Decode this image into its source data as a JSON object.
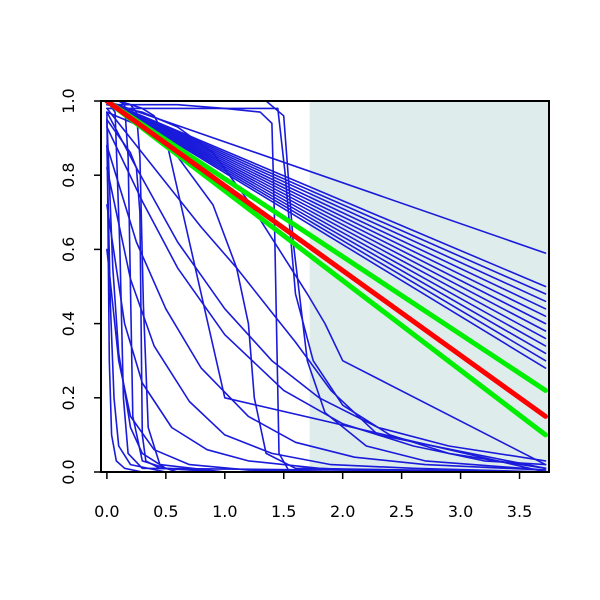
{
  "chart_data": {
    "type": "line",
    "title": "",
    "xlabel": "",
    "ylabel": "",
    "xlim": [
      -0.05,
      3.75
    ],
    "ylim": [
      0,
      1
    ],
    "x_ticks": [
      0,
      0.5,
      1,
      1.5,
      2,
      2.5,
      3,
      3.5
    ],
    "x_tick_labels": [
      "0.0",
      "0.5",
      "1.0",
      "1.5",
      "2.0",
      "2.5",
      "3.0",
      "3.5"
    ],
    "y_ticks": [
      0,
      0.2,
      0.4,
      0.6,
      0.8,
      1
    ],
    "y_tick_labels": [
      "0.0",
      "0.2",
      "0.4",
      "0.6",
      "0.8",
      "1.0"
    ],
    "grid": false,
    "legend": "none",
    "shaded_region": {
      "x": [
        1.72,
        3.75
      ],
      "y": [
        0,
        1
      ],
      "color": "#dfecec"
    },
    "colors": {
      "blue": "#1a1adb",
      "red": "#ff0000",
      "green": "#00ee00",
      "shade": "#dfecec"
    },
    "series": [
      {
        "color": "blue",
        "x": [
          0,
          3.72
        ],
        "y": [
          1,
          0.59
        ]
      },
      {
        "color": "blue",
        "x": [
          0,
          3.72
        ],
        "y": [
          1,
          0.5
        ]
      },
      {
        "color": "blue",
        "x": [
          0,
          3.72
        ],
        "y": [
          1,
          0.48
        ]
      },
      {
        "color": "blue",
        "x": [
          0,
          3.72
        ],
        "y": [
          1,
          0.46
        ]
      },
      {
        "color": "blue",
        "x": [
          0,
          3.72
        ],
        "y": [
          1,
          0.44
        ]
      },
      {
        "color": "blue",
        "x": [
          0,
          3.72
        ],
        "y": [
          1,
          0.42
        ]
      },
      {
        "color": "blue",
        "x": [
          0,
          3.72
        ],
        "y": [
          1,
          0.4
        ]
      },
      {
        "color": "blue",
        "x": [
          0,
          3.72
        ],
        "y": [
          1,
          0.38
        ]
      },
      {
        "color": "blue",
        "x": [
          0,
          3.72
        ],
        "y": [
          1,
          0.36
        ]
      },
      {
        "color": "blue",
        "x": [
          0,
          3.72
        ],
        "y": [
          1,
          0.34
        ]
      },
      {
        "color": "blue",
        "x": [
          0,
          3.72
        ],
        "y": [
          1,
          0.32
        ]
      },
      {
        "color": "blue",
        "x": [
          0,
          3.72
        ],
        "y": [
          1,
          0.3
        ]
      },
      {
        "color": "blue",
        "x": [
          0,
          3.72
        ],
        "y": [
          1,
          0.28
        ]
      },
      {
        "color": "blue",
        "x": [
          0,
          1.45,
          1.51,
          1.6,
          1.75,
          2.0,
          2.4,
          2.9,
          3.72
        ],
        "y": [
          0.98,
          0.98,
          0.81,
          0.48,
          0.3,
          0.18,
          0.1,
          0.05,
          0.01
        ]
      },
      {
        "color": "blue",
        "x": [
          0,
          1.35,
          1.5,
          1.58,
          1.7,
          1.85,
          2.2,
          2.7,
          3.72
        ],
        "y": [
          1,
          1,
          0.96,
          0.62,
          0.3,
          0.16,
          0.07,
          0.03,
          0.005
        ]
      },
      {
        "color": "blue",
        "x": [
          0,
          0.25,
          0.6,
          1.0,
          1.4,
          1.8,
          2.3,
          2.9,
          3.72
        ],
        "y": [
          0.97,
          0.82,
          0.62,
          0.44,
          0.3,
          0.2,
          0.12,
          0.07,
          0.03
        ]
      },
      {
        "color": "blue",
        "x": [
          0,
          0.3,
          0.6,
          1.0,
          1.5,
          2.0,
          2.6,
          3.2,
          3.72
        ],
        "y": [
          0.93,
          0.73,
          0.55,
          0.37,
          0.22,
          0.13,
          0.07,
          0.03,
          0.02
        ]
      },
      {
        "color": "blue",
        "x": [
          0,
          0.25,
          0.5,
          0.8,
          1.2,
          1.6,
          2.1,
          2.7,
          3.72
        ],
        "y": [
          0.88,
          0.62,
          0.44,
          0.28,
          0.15,
          0.08,
          0.04,
          0.02,
          0.005
        ]
      },
      {
        "color": "blue",
        "x": [
          0,
          0.2,
          0.4,
          0.7,
          1.0,
          1.4,
          1.9,
          2.6,
          3.72
        ],
        "y": [
          0.82,
          0.52,
          0.34,
          0.19,
          0.1,
          0.05,
          0.02,
          0.01,
          0
        ]
      },
      {
        "color": "blue",
        "x": [
          0,
          0.15,
          0.3,
          0.55,
          0.85,
          1.2,
          1.8,
          2.6,
          3.72
        ],
        "y": [
          0.72,
          0.4,
          0.24,
          0.12,
          0.06,
          0.03,
          0.01,
          0,
          0
        ]
      },
      {
        "color": "blue",
        "x": [
          0,
          0.1,
          0.2,
          0.4,
          0.7,
          1.2,
          2.0,
          3.0,
          3.72
        ],
        "y": [
          0.6,
          0.3,
          0.15,
          0.06,
          0.02,
          0.005,
          0,
          0,
          0
        ]
      },
      {
        "color": "blue",
        "x": [
          0,
          0.6,
          1.0,
          1.3,
          1.4,
          1.42,
          1.46,
          1.55,
          3.72
        ],
        "y": [
          0.99,
          0.99,
          0.98,
          0.97,
          0.94,
          0.7,
          0.05,
          0,
          0
        ]
      },
      {
        "color": "blue",
        "x": [
          0,
          0.3,
          0.6,
          0.9,
          1.1,
          1.2,
          1.25,
          1.35,
          1.6,
          3.72
        ],
        "y": [
          0.97,
          0.93,
          0.85,
          0.72,
          0.55,
          0.4,
          0.2,
          0.05,
          0.01,
          0
        ]
      },
      {
        "color": "blue",
        "x": [
          0,
          0.3,
          0.6,
          0.9,
          1.2,
          1.5,
          1.7,
          1.85,
          2.0,
          3.72
        ],
        "y": [
          0.99,
          0.97,
          0.93,
          0.86,
          0.73,
          0.58,
          0.48,
          0.4,
          0.3,
          0.02
        ]
      },
      {
        "color": "blue",
        "x": [
          0,
          0.2,
          0.5,
          0.8,
          1.1,
          1.4,
          1.6,
          1.9,
          2.3,
          3.72
        ],
        "y": [
          0.98,
          0.9,
          0.78,
          0.66,
          0.55,
          0.43,
          0.35,
          0.22,
          0.1,
          0.01
        ]
      },
      {
        "color": "blue",
        "x": [
          0,
          0.1,
          0.2,
          0.25,
          0.28,
          0.31,
          0.35,
          0.45,
          1.0,
          3.72
        ],
        "y": [
          1,
          1,
          0.99,
          0.97,
          0.85,
          0.45,
          0.12,
          0.02,
          0,
          0
        ]
      },
      {
        "color": "blue",
        "x": [
          0,
          0.2,
          0.25,
          0.28,
          0.3,
          0.33,
          0.45,
          1.0,
          3.72
        ],
        "y": [
          0.95,
          0.86,
          0.82,
          0.7,
          0.1,
          0.03,
          0.01,
          0,
          0
        ]
      },
      {
        "color": "blue",
        "x": [
          0,
          0.1,
          0.15,
          0.18,
          0.22,
          0.3,
          0.6,
          3.72
        ],
        "y": [
          1,
          1,
          0.99,
          0.85,
          0.15,
          0.03,
          0,
          0
        ]
      },
      {
        "color": "blue",
        "x": [
          0,
          0.07,
          0.11,
          0.14,
          0.18,
          0.3,
          3.72
        ],
        "y": [
          1,
          0.97,
          0.6,
          0.2,
          0.05,
          0.01,
          0
        ]
      },
      {
        "color": "blue",
        "x": [
          0,
          0.05,
          0.1,
          0.2,
          0.3,
          0.5,
          1.0,
          3.72
        ],
        "y": [
          0.95,
          0.55,
          0.32,
          0.12,
          0.05,
          0.01,
          0,
          0
        ]
      },
      {
        "color": "blue",
        "x": [
          0,
          0.02,
          0.04,
          0.08,
          0.15,
          0.3,
          3.72
        ],
        "y": [
          0.97,
          0.3,
          0.1,
          0.03,
          0.01,
          0,
          0
        ]
      },
      {
        "color": "blue",
        "x": [
          0,
          0.03,
          0.06,
          0.1,
          0.2,
          0.5,
          3.72
        ],
        "y": [
          0.88,
          0.45,
          0.2,
          0.07,
          0.02,
          0,
          0
        ]
      },
      {
        "color": "blue",
        "x": [
          0,
          0.1,
          0.2,
          0.3,
          0.4,
          0.5,
          1.0,
          3.72
        ],
        "y": [
          1,
          1,
          0.99,
          0.98,
          0.96,
          0.9,
          0.2,
          0
        ]
      },
      {
        "color": "green",
        "x": [
          0,
          3.72
        ],
        "y": [
          1,
          0.22
        ]
      },
      {
        "color": "green",
        "x": [
          0,
          3.72
        ],
        "y": [
          1,
          0.1
        ]
      },
      {
        "color": "red",
        "x": [
          0,
          3.72
        ],
        "y": [
          1,
          0.15
        ]
      }
    ]
  }
}
